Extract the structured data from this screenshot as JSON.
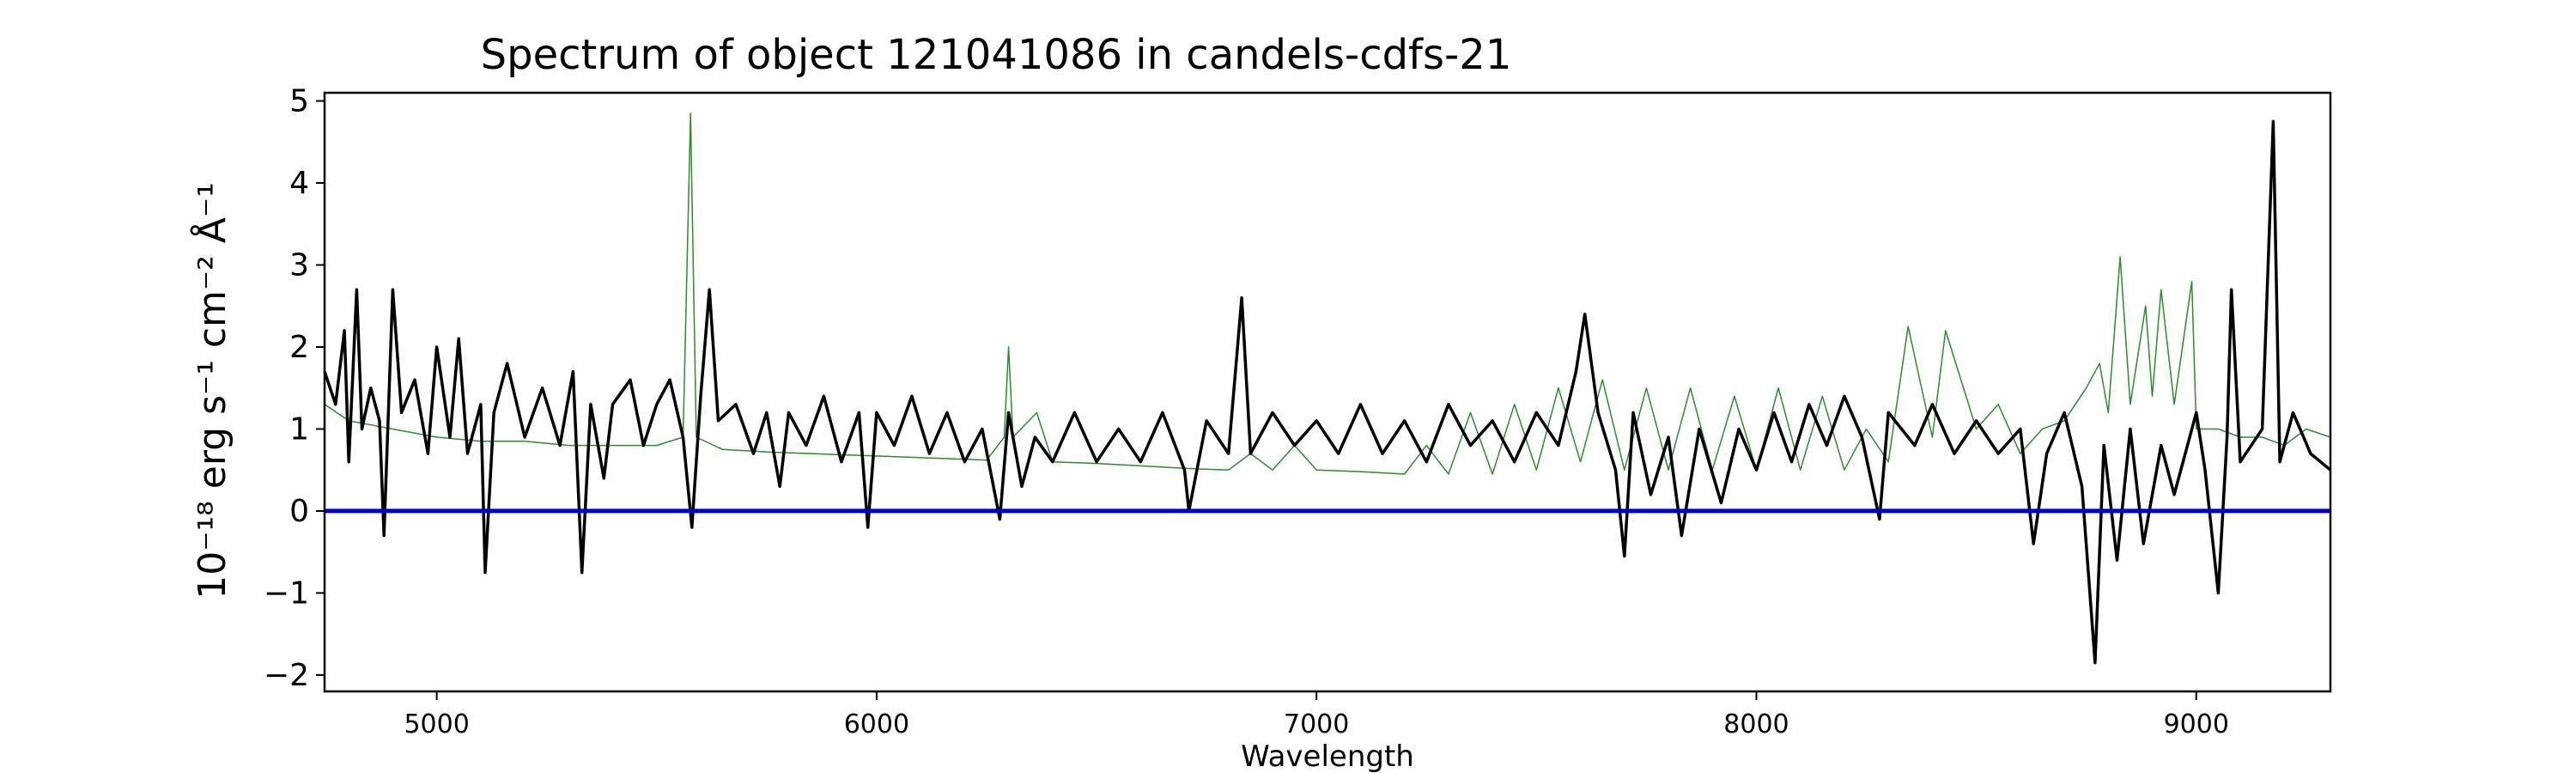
{
  "chart_data": {
    "type": "line",
    "title": "Spectrum of object 121041086 in candels-cdfs-21",
    "xlabel": "Wavelength",
    "ylabel": "10⁻¹⁸ erg s⁻¹ cm⁻² Å⁻¹",
    "xlim": [
      4745,
      9305
    ],
    "ylim": [
      -2.2,
      5.1
    ],
    "xticks": [
      5000,
      6000,
      7000,
      8000,
      9000
    ],
    "yticks": [
      -2,
      -1,
      0,
      1,
      2,
      3,
      4,
      5
    ],
    "grid": false,
    "series": [
      {
        "color": "#2e8b2e",
        "style": "thin-line",
        "points": [
          [
            4745,
            1.3
          ],
          [
            4800,
            1.1
          ],
          [
            4850,
            1.05
          ],
          [
            4900,
            1.0
          ],
          [
            4950,
            0.95
          ],
          [
            5000,
            0.9
          ],
          [
            5100,
            0.85
          ],
          [
            5200,
            0.85
          ],
          [
            5300,
            0.8
          ],
          [
            5400,
            0.8
          ],
          [
            5500,
            0.8
          ],
          [
            5560,
            0.9
          ],
          [
            5577,
            4.85
          ],
          [
            5590,
            0.9
          ],
          [
            5650,
            0.75
          ],
          [
            5750,
            0.72
          ],
          [
            5850,
            0.7
          ],
          [
            5950,
            0.68
          ],
          [
            6050,
            0.66
          ],
          [
            6150,
            0.64
          ],
          [
            6250,
            0.62
          ],
          [
            6290,
            0.9
          ],
          [
            6300,
            2.0
          ],
          [
            6310,
            0.9
          ],
          [
            6364,
            1.2
          ],
          [
            6400,
            0.6
          ],
          [
            6500,
            0.58
          ],
          [
            6600,
            0.55
          ],
          [
            6700,
            0.52
          ],
          [
            6800,
            0.5
          ],
          [
            6850,
            0.7
          ],
          [
            6900,
            0.5
          ],
          [
            6950,
            0.8
          ],
          [
            7000,
            0.5
          ],
          [
            7100,
            0.48
          ],
          [
            7200,
            0.45
          ],
          [
            7250,
            0.8
          ],
          [
            7300,
            0.45
          ],
          [
            7350,
            1.2
          ],
          [
            7400,
            0.45
          ],
          [
            7450,
            1.3
          ],
          [
            7500,
            0.5
          ],
          [
            7550,
            1.5
          ],
          [
            7600,
            0.6
          ],
          [
            7650,
            1.6
          ],
          [
            7700,
            0.5
          ],
          [
            7750,
            1.5
          ],
          [
            7800,
            0.5
          ],
          [
            7850,
            1.5
          ],
          [
            7900,
            0.5
          ],
          [
            7950,
            1.4
          ],
          [
            8000,
            0.5
          ],
          [
            8050,
            1.5
          ],
          [
            8100,
            0.5
          ],
          [
            8150,
            1.4
          ],
          [
            8200,
            0.5
          ],
          [
            8250,
            1.0
          ],
          [
            8300,
            0.6
          ],
          [
            8345,
            2.25
          ],
          [
            8400,
            0.9
          ],
          [
            8430,
            2.2
          ],
          [
            8500,
            1.0
          ],
          [
            8550,
            1.3
          ],
          [
            8600,
            0.7
          ],
          [
            8650,
            1.0
          ],
          [
            8700,
            1.1
          ],
          [
            8750,
            1.5
          ],
          [
            8780,
            1.8
          ],
          [
            8800,
            1.2
          ],
          [
            8827,
            3.1
          ],
          [
            8850,
            1.3
          ],
          [
            8885,
            2.5
          ],
          [
            8900,
            1.4
          ],
          [
            8920,
            2.7
          ],
          [
            8950,
            1.3
          ],
          [
            8990,
            2.8
          ],
          [
            9000,
            1.0
          ],
          [
            9050,
            1.0
          ],
          [
            9100,
            0.9
          ],
          [
            9150,
            0.9
          ],
          [
            9200,
            0.8
          ],
          [
            9250,
            1.0
          ],
          [
            9305,
            0.9
          ]
        ]
      },
      {
        "color": "#000000",
        "style": "thick-line",
        "points": [
          [
            4745,
            1.7
          ],
          [
            4770,
            1.3
          ],
          [
            4790,
            2.2
          ],
          [
            4800,
            0.6
          ],
          [
            4818,
            2.7
          ],
          [
            4830,
            1.0
          ],
          [
            4850,
            1.5
          ],
          [
            4870,
            1.1
          ],
          [
            4880,
            -0.3
          ],
          [
            4900,
            2.7
          ],
          [
            4920,
            1.2
          ],
          [
            4950,
            1.6
          ],
          [
            4980,
            0.7
          ],
          [
            5000,
            2.0
          ],
          [
            5030,
            0.9
          ],
          [
            5050,
            2.1
          ],
          [
            5070,
            0.7
          ],
          [
            5100,
            1.3
          ],
          [
            5110,
            -0.75
          ],
          [
            5130,
            1.2
          ],
          [
            5160,
            1.8
          ],
          [
            5200,
            0.9
          ],
          [
            5240,
            1.5
          ],
          [
            5280,
            0.8
          ],
          [
            5310,
            1.7
          ],
          [
            5330,
            -0.75
          ],
          [
            5350,
            1.3
          ],
          [
            5380,
            0.4
          ],
          [
            5400,
            1.3
          ],
          [
            5440,
            1.6
          ],
          [
            5470,
            0.8
          ],
          [
            5500,
            1.3
          ],
          [
            5530,
            1.6
          ],
          [
            5560,
            0.9
          ],
          [
            5580,
            -0.2
          ],
          [
            5600,
            1.4
          ],
          [
            5620,
            2.7
          ],
          [
            5640,
            1.1
          ],
          [
            5680,
            1.3
          ],
          [
            5720,
            0.7
          ],
          [
            5750,
            1.2
          ],
          [
            5780,
            0.3
          ],
          [
            5800,
            1.2
          ],
          [
            5840,
            0.8
          ],
          [
            5880,
            1.4
          ],
          [
            5920,
            0.6
          ],
          [
            5960,
            1.2
          ],
          [
            5980,
            -0.2
          ],
          [
            6000,
            1.2
          ],
          [
            6040,
            0.8
          ],
          [
            6080,
            1.4
          ],
          [
            6120,
            0.7
          ],
          [
            6160,
            1.2
          ],
          [
            6200,
            0.6
          ],
          [
            6240,
            1.0
          ],
          [
            6280,
            -0.1
          ],
          [
            6300,
            1.2
          ],
          [
            6330,
            0.3
          ],
          [
            6360,
            0.9
          ],
          [
            6400,
            0.6
          ],
          [
            6450,
            1.2
          ],
          [
            6500,
            0.6
          ],
          [
            6550,
            1.0
          ],
          [
            6600,
            0.6
          ],
          [
            6650,
            1.2
          ],
          [
            6700,
            0.5
          ],
          [
            6710,
            0.0
          ],
          [
            6750,
            1.1
          ],
          [
            6800,
            0.7
          ],
          [
            6830,
            2.6
          ],
          [
            6850,
            0.7
          ],
          [
            6900,
            1.2
          ],
          [
            6950,
            0.8
          ],
          [
            7000,
            1.1
          ],
          [
            7050,
            0.7
          ],
          [
            7100,
            1.3
          ],
          [
            7150,
            0.7
          ],
          [
            7200,
            1.1
          ],
          [
            7250,
            0.6
          ],
          [
            7300,
            1.3
          ],
          [
            7350,
            0.8
          ],
          [
            7400,
            1.1
          ],
          [
            7450,
            0.6
          ],
          [
            7500,
            1.2
          ],
          [
            7550,
            0.8
          ],
          [
            7590,
            1.7
          ],
          [
            7610,
            2.4
          ],
          [
            7640,
            1.2
          ],
          [
            7680,
            0.5
          ],
          [
            7700,
            -0.55
          ],
          [
            7720,
            1.2
          ],
          [
            7760,
            0.2
          ],
          [
            7800,
            0.9
          ],
          [
            7830,
            -0.3
          ],
          [
            7870,
            1.0
          ],
          [
            7920,
            0.1
          ],
          [
            7960,
            1.0
          ],
          [
            8000,
            0.5
          ],
          [
            8040,
            1.2
          ],
          [
            8080,
            0.6
          ],
          [
            8120,
            1.3
          ],
          [
            8160,
            0.8
          ],
          [
            8200,
            1.4
          ],
          [
            8240,
            0.9
          ],
          [
            8280,
            -0.1
          ],
          [
            8300,
            1.2
          ],
          [
            8360,
            0.8
          ],
          [
            8400,
            1.3
          ],
          [
            8450,
            0.7
          ],
          [
            8500,
            1.1
          ],
          [
            8550,
            0.7
          ],
          [
            8600,
            1.0
          ],
          [
            8630,
            -0.4
          ],
          [
            8660,
            0.7
          ],
          [
            8700,
            1.2
          ],
          [
            8740,
            0.3
          ],
          [
            8770,
            -1.85
          ],
          [
            8790,
            0.8
          ],
          [
            8820,
            -0.6
          ],
          [
            8850,
            1.0
          ],
          [
            8880,
            -0.4
          ],
          [
            8920,
            0.8
          ],
          [
            8950,
            0.2
          ],
          [
            9000,
            1.2
          ],
          [
            9020,
            0.5
          ],
          [
            9050,
            -1.0
          ],
          [
            9070,
            0.9
          ],
          [
            9080,
            2.7
          ],
          [
            9100,
            0.6
          ],
          [
            9150,
            1.0
          ],
          [
            9175,
            4.75
          ],
          [
            9190,
            0.6
          ],
          [
            9220,
            1.2
          ],
          [
            9260,
            0.7
          ],
          [
            9305,
            0.5
          ]
        ]
      },
      {
        "color": "#0000cc",
        "style": "zero-line",
        "points": [
          [
            4745,
            0
          ],
          [
            9305,
            0
          ]
        ]
      }
    ]
  }
}
